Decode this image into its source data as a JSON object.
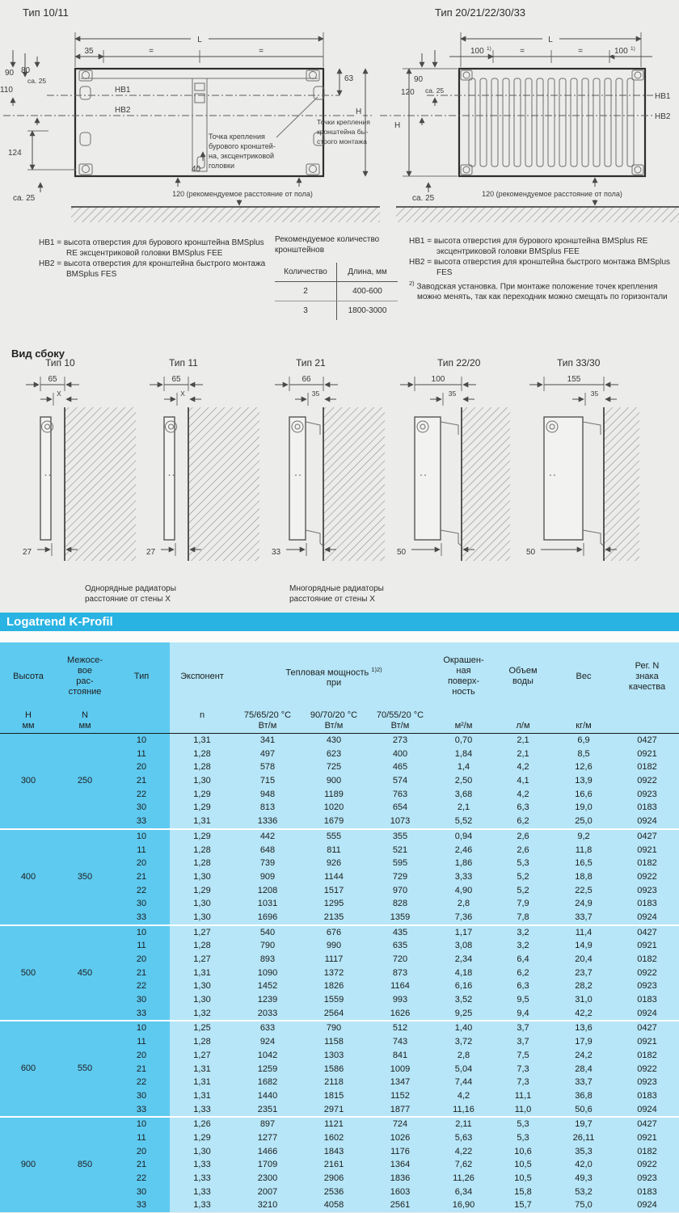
{
  "page": {
    "bg": "#ececea",
    "accent": "#29b3e3",
    "table_dark": "#5ecaf0",
    "table_light": "#b6e6f7"
  },
  "drawings": {
    "left": {
      "title": "Тип 10/11",
      "dim_L": "L",
      "dim_35": "35",
      "eq": "=",
      "dim_90": "90",
      "dim_80": "80",
      "dim_110": "110",
      "dim_ca25_top": "ca. 25",
      "hb1": "HB1",
      "hb2": "HB2",
      "dim_124": "124",
      "dim_ca25_bottom": "ca. 25",
      "dim_63": "63",
      "dim_40": "40",
      "dim_H": "H",
      "floor_note": "120 (рекомендуемое расстояние от пола)",
      "callout_center_lines": [
        "Точка крепления",
        "бурового кронштей-",
        "на, эксцентриковой",
        "головки"
      ],
      "callout_right_lines": [
        "Точки крепления",
        "кронштейна бы-",
        "строго монтажа"
      ]
    },
    "right": {
      "title": "Тип 20/21/22/30/33",
      "dim_L": "L",
      "dim_100": "100",
      "sup_1": "1)",
      "eq": "=",
      "dim_90": "90",
      "dim_120": "120",
      "dim_ca25_top": "ca. 25",
      "dim_H": "H",
      "hb1": "HB1",
      "hb2": "HB2",
      "dim_ca25_bottom": "ca. 25",
      "floor_note": "120 (рекомендуемое расстояние от пола)"
    },
    "notes_left": [
      {
        "term": "HB1",
        "text": "= высота отверстия для бурового кронштейна BMSplus RE эксцентриковой головки BMSplus FEE"
      },
      {
        "term": "HB2",
        "text": "= высота отверстия для кронштейна быстрого монтажа BMSplus FES"
      }
    ],
    "notes_right": [
      {
        "term": "HB1",
        "text": "= высота отверстия для бурового кронштейна BMSplus RE эксцентриковой головки BMSplus FEE"
      },
      {
        "term": "HB2",
        "text": "= высота отверстия для кронштейна быстрого монтажа BMSplus FES"
      },
      {
        "term": "2)",
        "text": "Заводская установка. При монтаже положение точек крепления можно менять, так как переходник можно смещать по горизонтали"
      }
    ],
    "bracket_table": {
      "title": "Рекомендуемое количество кронштейнов",
      "col1": "Количество",
      "col2": "Длина, мм",
      "rows": [
        [
          "2",
          "400-600"
        ],
        [
          "3",
          "1800-3000"
        ]
      ]
    }
  },
  "side_views": {
    "section_title": "Вид сбоку",
    "items": [
      {
        "title": "Тип 10",
        "dim_top": "65",
        "dim_inner": "X",
        "dim_bottom": "27"
      },
      {
        "title": "Тип 11",
        "dim_top": "65",
        "dim_inner": "X",
        "dim_bottom": "27"
      },
      {
        "title": "Тип 21",
        "dim_top": "66",
        "dim_inner": "35",
        "dim_bottom": "33"
      },
      {
        "title": "Тип 22/20",
        "dim_top": "100",
        "dim_inner": "35",
        "dim_bottom": "50"
      },
      {
        "title": "Тип 33/30",
        "dim_top": "155",
        "dim_inner": "35",
        "dim_bottom": "50"
      }
    ],
    "caption_single": [
      "Однорядные радиаторы",
      "расстояние от стены X"
    ],
    "caption_multi": [
      "Многорядные радиаторы",
      "расстояние от стены X"
    ]
  },
  "banner": {
    "title": "Logatrend K-Profil"
  },
  "table": {
    "col_height": {
      "title": "Высота",
      "sym": "H",
      "unit": "мм"
    },
    "col_spacing": {
      "title_lines": [
        "Межосе-",
        "вое",
        "рас-",
        "стояние"
      ],
      "sym": "N",
      "unit": "мм"
    },
    "col_type": {
      "title": "Тип"
    },
    "col_exponent": {
      "title": "Экспонент",
      "sym": "n"
    },
    "col_power": {
      "title": "Тепловая мощность",
      "sup": "1)2)",
      "sub": "при",
      "cols": [
        {
          "temp": "75/65/20 °C",
          "unit": "Вт/м"
        },
        {
          "temp": "90/70/20 °C",
          "unit": "Вт/м"
        },
        {
          "temp": "70/55/20 °C",
          "unit": "Вт/м"
        }
      ]
    },
    "col_surface": {
      "title_lines": [
        "Окрашен-",
        "ная",
        "поверх-",
        "ность"
      ],
      "unit": "м²/м"
    },
    "col_volume": {
      "title_lines": [
        "Объем",
        "воды"
      ],
      "unit": "л/м"
    },
    "col_weight": {
      "title": "Вес",
      "unit": "кг/м"
    },
    "col_reg": {
      "title_lines": [
        "Рег. N",
        "знака",
        "качества"
      ]
    },
    "groups": [
      {
        "h": "300",
        "n": "250",
        "rows": [
          [
            "10",
            "1,31",
            "341",
            "430",
            "273",
            "0,70",
            "2,1",
            "6,9",
            "0427"
          ],
          [
            "11",
            "1,28",
            "497",
            "623",
            "400",
            "1,84",
            "2,1",
            "8,5",
            "0921"
          ],
          [
            "20",
            "1,28",
            "578",
            "725",
            "465",
            "1,4",
            "4,2",
            "12,6",
            "0182"
          ],
          [
            "21",
            "1,30",
            "715",
            "900",
            "574",
            "2,50",
            "4,1",
            "13,9",
            "0922"
          ],
          [
            "22",
            "1,29",
            "948",
            "1189",
            "763",
            "3,68",
            "4,2",
            "16,6",
            "0923"
          ],
          [
            "30",
            "1,29",
            "813",
            "1020",
            "654",
            "2,1",
            "6,3",
            "19,0",
            "0183"
          ],
          [
            "33",
            "1,31",
            "1336",
            "1679",
            "1073",
            "5,52",
            "6,2",
            "25,0",
            "0924"
          ]
        ]
      },
      {
        "h": "400",
        "n": "350",
        "rows": [
          [
            "10",
            "1,29",
            "442",
            "555",
            "355",
            "0,94",
            "2,6",
            "9,2",
            "0427"
          ],
          [
            "11",
            "1,28",
            "648",
            "811",
            "521",
            "2,46",
            "2,6",
            "11,8",
            "0921"
          ],
          [
            "20",
            "1,28",
            "739",
            "926",
            "595",
            "1,86",
            "5,3",
            "16,5",
            "0182"
          ],
          [
            "21",
            "1,30",
            "909",
            "1144",
            "729",
            "3,33",
            "5,2",
            "18,8",
            "0922"
          ],
          [
            "22",
            "1,29",
            "1208",
            "1517",
            "970",
            "4,90",
            "5,2",
            "22,5",
            "0923"
          ],
          [
            "30",
            "1,30",
            "1031",
            "1295",
            "828",
            "2,8",
            "7,9",
            "24,9",
            "0183"
          ],
          [
            "33",
            "1,30",
            "1696",
            "2135",
            "1359",
            "7,36",
            "7,8",
            "33,7",
            "0924"
          ]
        ]
      },
      {
        "h": "500",
        "n": "450",
        "rows": [
          [
            "10",
            "1,27",
            "540",
            "676",
            "435",
            "1,17",
            "3,2",
            "11,4",
            "0427"
          ],
          [
            "11",
            "1,28",
            "790",
            "990",
            "635",
            "3,08",
            "3,2",
            "14,9",
            "0921"
          ],
          [
            "20",
            "1,27",
            "893",
            "1117",
            "720",
            "2,34",
            "6,4",
            "20,4",
            "0182"
          ],
          [
            "21",
            "1,31",
            "1090",
            "1372",
            "873",
            "4,18",
            "6,2",
            "23,7",
            "0922"
          ],
          [
            "22",
            "1,30",
            "1452",
            "1826",
            "1164",
            "6,16",
            "6,3",
            "28,2",
            "0923"
          ],
          [
            "30",
            "1,30",
            "1239",
            "1559",
            "993",
            "3,52",
            "9,5",
            "31,0",
            "0183"
          ],
          [
            "33",
            "1,32",
            "2033",
            "2564",
            "1626",
            "9,25",
            "9,4",
            "42,2",
            "0924"
          ]
        ]
      },
      {
        "h": "600",
        "n": "550",
        "rows": [
          [
            "10",
            "1,25",
            "633",
            "790",
            "512",
            "1,40",
            "3,7",
            "13,6",
            "0427"
          ],
          [
            "11",
            "1,28",
            "924",
            "1158",
            "743",
            "3,72",
            "3,7",
            "17,9",
            "0921"
          ],
          [
            "20",
            "1,27",
            "1042",
            "1303",
            "841",
            "2,8",
            "7,5",
            "24,2",
            "0182"
          ],
          [
            "21",
            "1,31",
            "1259",
            "1586",
            "1009",
            "5,04",
            "7,3",
            "28,4",
            "0922"
          ],
          [
            "22",
            "1,31",
            "1682",
            "2118",
            "1347",
            "7,44",
            "7,3",
            "33,7",
            "0923"
          ],
          [
            "30",
            "1,31",
            "1440",
            "1815",
            "1152",
            "4,2",
            "11,1",
            "36,8",
            "0183"
          ],
          [
            "33",
            "1,33",
            "2351",
            "2971",
            "1877",
            "11,16",
            "11,0",
            "50,6",
            "0924"
          ]
        ]
      },
      {
        "h": "900",
        "n": "850",
        "rows": [
          [
            "10",
            "1,26",
            "897",
            "1121",
            "724",
            "2,11",
            "5,3",
            "19,7",
            "0427"
          ],
          [
            "11",
            "1,29",
            "1277",
            "1602",
            "1026",
            "5,63",
            "5,3",
            "26,11",
            "0921"
          ],
          [
            "20",
            "1,30",
            "1466",
            "1843",
            "1176",
            "4,22",
            "10,6",
            "35,3",
            "0182"
          ],
          [
            "21",
            "1,33",
            "1709",
            "2161",
            "1364",
            "7,62",
            "10,5",
            "42,0",
            "0922"
          ],
          [
            "22",
            "1,33",
            "2300",
            "2906",
            "1836",
            "11,26",
            "10,5",
            "49,3",
            "0923"
          ],
          [
            "30",
            "1,33",
            "2007",
            "2536",
            "1603",
            "6,34",
            "15,8",
            "53,2",
            "0183"
          ],
          [
            "33",
            "1,33",
            "3210",
            "4058",
            "2561",
            "16,90",
            "15,7",
            "75,0",
            "0924"
          ]
        ]
      }
    ]
  }
}
